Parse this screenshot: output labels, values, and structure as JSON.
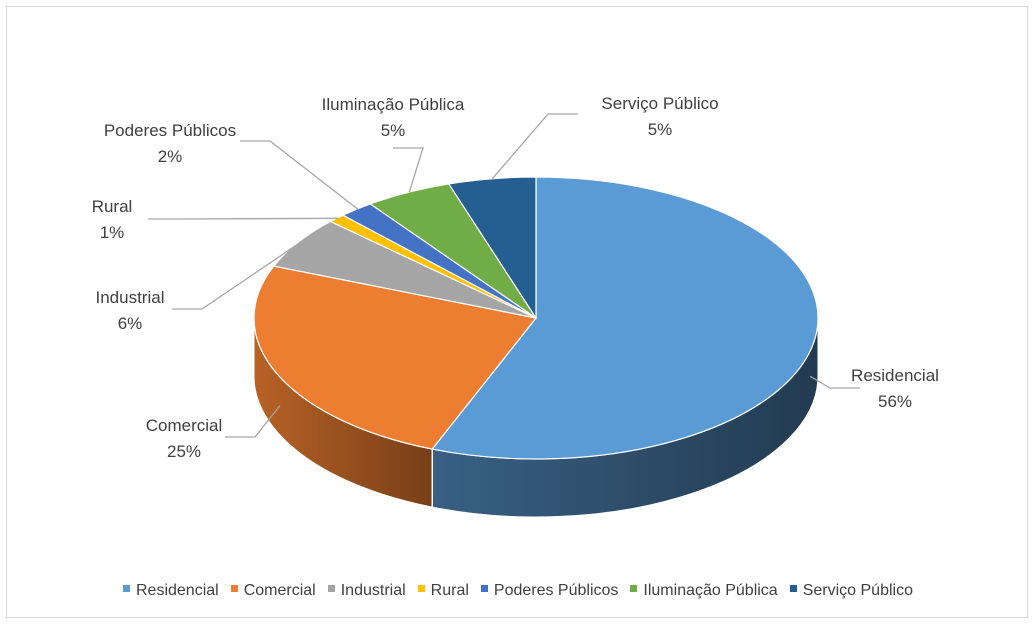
{
  "chart_data": {
    "type": "pie",
    "style": "3d",
    "categories": [
      "Residencial",
      "Comercial",
      "Industrial",
      "Rural",
      "Poderes Públicos",
      "Iluminação Pública",
      "Serviço Público"
    ],
    "values": [
      56,
      25,
      6,
      1,
      2,
      5,
      5
    ],
    "value_labels": [
      "56%",
      "25%",
      "6%",
      "1%",
      "2%",
      "5%",
      "5%"
    ],
    "colors": [
      "#5b9bd5",
      "#ed7d31",
      "#a5a5a5",
      "#ffc000",
      "#4472c4",
      "#70ad47",
      "#255e91"
    ],
    "legend_position": "bottom"
  }
}
